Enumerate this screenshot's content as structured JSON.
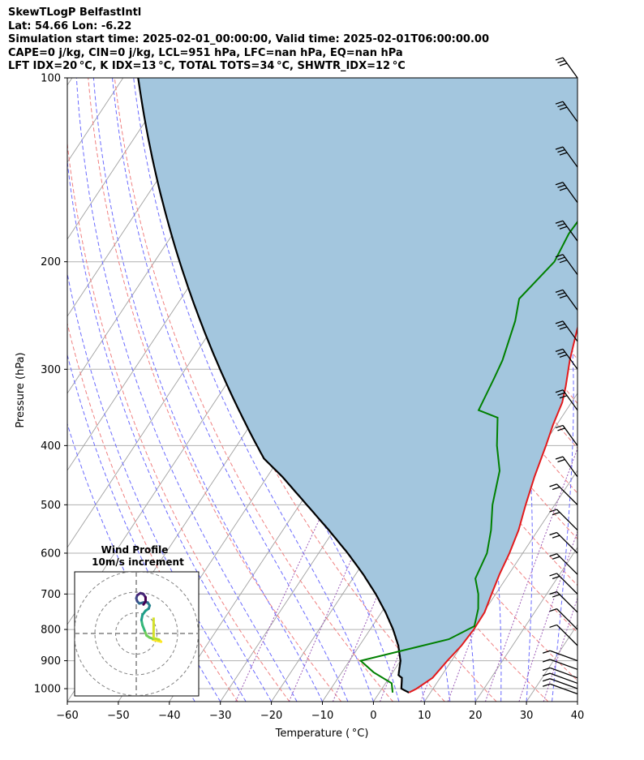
{
  "header": {
    "line1": "SkewTLogP BelfastIntl",
    "line2": "Lat: 54.66   Lon: -6.22",
    "line3": "Simulation start time: 2025-02-01_00:00:00, Valid time: 2025-02-01T06:00:00.00",
    "line4": "CAPE=0 j/kg, CIN=0 j/kg, LCL=951 hPa, LFC=nan hPa, EQ=nan hPa",
    "line5": "LFT IDX=20 °C, K IDX=13 °C, TOTAL TOTS=34 °C, SHWTR_IDX=12 °C"
  },
  "chart_data": {
    "type": "line",
    "diagram": "skew-T log-P",
    "xlabel": "Temperature ( °C)",
    "ylabel": "Pressure (hPa)",
    "xlim": [
      -60,
      40
    ],
    "ylim": [
      1050,
      100
    ],
    "y_scale": "log",
    "grid": true,
    "x_ticks": [
      "−60",
      "−50",
      "−40",
      "−30",
      "−20",
      "−10",
      "0",
      "10",
      "20",
      "30",
      "40"
    ],
    "y_ticks": [
      "1000",
      "900",
      "800",
      "700",
      "600",
      "500",
      "400",
      "300",
      "200",
      "100"
    ],
    "colors": {
      "temperature": "#e31a1c",
      "dewpoint": "#008000",
      "parcel": "#000000",
      "cin_cape_fill": "#a3c6de",
      "dry_adiabats": "#f08080",
      "moist_adiabats": "#6b6bff",
      "isotherms": "#a0a0a0",
      "mixing_ratio": "#9b59b6"
    },
    "series": [
      {
        "key": "temperature",
        "x": [
          5.8,
          6.8,
          8.5,
          9.2,
          10.0,
          10.3,
          10.2,
          9.2,
          8.2,
          7.4,
          6.2,
          4.3,
          2.4,
          0.6,
          -0.7,
          -1.8,
          -3.2,
          -5.8,
          -8.2,
          -10.7,
          -12.6,
          -13.6,
          -11.4,
          -12.2,
          -11.8,
          -11.2,
          -7.8,
          0.0,
          3.5
        ],
        "p": [
          1015,
          1000,
          960,
          900,
          850,
          800,
          750,
          700,
          650,
          600,
          550,
          500,
          450,
          400,
          370,
          340,
          320,
          290,
          260,
          230,
          205,
          190,
          175,
          160,
          145,
          135,
          130,
          110,
          100
        ]
      },
      {
        "key": "dewpoint",
        "x": [
          2.6,
          1.2,
          -3.8,
          -7.8,
          6.7,
          10.0,
          8.5,
          6.6,
          4.0,
          3.0,
          0.8,
          -2.2,
          -5.2,
          -9.0,
          -12.5,
          -17.2,
          -18.3,
          -19.0,
          -21.6,
          -23.7,
          -21.6,
          -22.4,
          -22.0,
          -19.0,
          -14.6,
          -14.0,
          -12.7,
          -12.6,
          -11.2
        ],
        "p": [
          1015,
          980,
          940,
          900,
          830,
          790,
          740,
          700,
          660,
          600,
          550,
          500,
          440,
          400,
          360,
          350,
          310,
          290,
          250,
          230,
          200,
          180,
          160,
          150,
          145,
          130,
          115,
          105,
          100
        ]
      },
      {
        "key": "parcel",
        "x": [
          5.8,
          3.8,
          2.5,
          1.5,
          0.0,
          -2.4,
          -5.5,
          -9.2,
          -13.5,
          -18.5,
          -24.3,
          -31.0,
          -38.6,
          -47.0,
          -53.0
        ],
        "p": [
          1015,
          1000,
          960,
          951,
          900,
          850,
          800,
          750,
          700,
          650,
          600,
          550,
          500,
          450,
          420
        ]
      }
    ],
    "wind_barbs": "right-edge column, 24 levels 1020-100 hPa, westerly winds strengthening aloft",
    "inset": {
      "title": "Wind Profile",
      "subtitle": "10m/s increment",
      "type": "hodograph",
      "rings": [
        10,
        20,
        30
      ],
      "u": [
        8.0,
        10.0,
        12.0,
        11.0,
        9.5,
        8.0,
        6.5,
        5.0,
        4.0,
        3.0,
        2.5,
        3.0,
        4.5,
        6.0,
        6.5,
        5.5,
        3.5,
        1.5,
        0.5,
        0.0,
        0.5,
        2.0,
        3.5,
        4.5,
        4.5,
        3.5
      ],
      "v": [
        -3.0,
        -3.5,
        -4.0,
        -3.0,
        -2.5,
        -2.5,
        -2.0,
        -1.0,
        1.5,
        4.0,
        6.5,
        9.0,
        11.0,
        12.0,
        13.5,
        15.0,
        15.0,
        14.5,
        15.5,
        17.0,
        18.5,
        19.5,
        19.0,
        17.5,
        15.5,
        14.0
      ],
      "surface_wind": [
        8.0,
        3.0
      ]
    }
  }
}
